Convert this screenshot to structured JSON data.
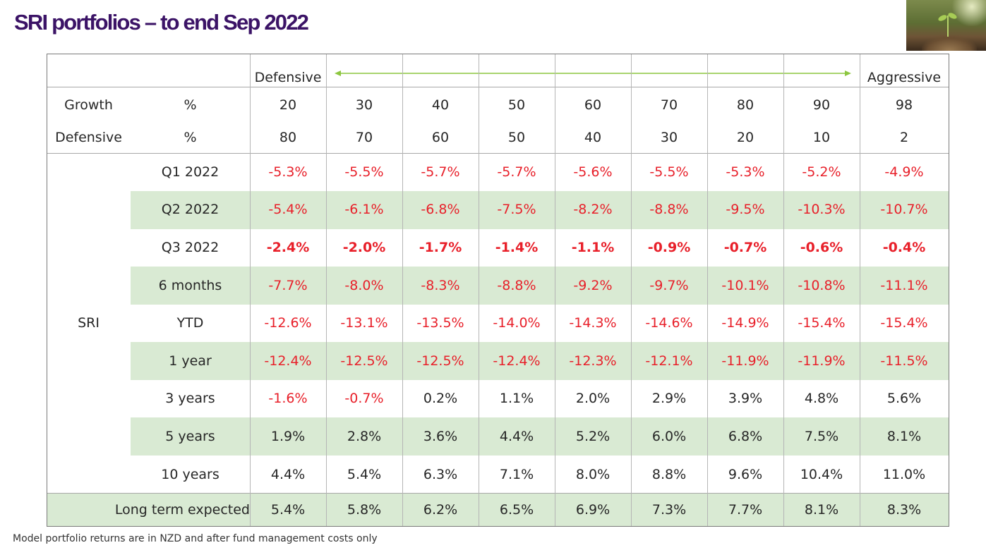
{
  "title": "SRI portfolios – to end Sep 2022",
  "footnote": "Model portfolio returns are in NZD and after fund management costs only",
  "colors": {
    "title": "#3b1366",
    "negative": "#e8202a",
    "band": "#d9ead3",
    "arrow": "#8cc63f"
  },
  "header": {
    "left_label": "Defensive",
    "right_label": "Aggressive",
    "arrow_icon": "double-headed-arrow-icon",
    "growth_label": "Growth",
    "defensive_label": "Defensive",
    "unit": "%",
    "growth": [
      "20",
      "30",
      "40",
      "50",
      "60",
      "70",
      "80",
      "90",
      "98"
    ],
    "defensive": [
      "80",
      "70",
      "60",
      "50",
      "40",
      "30",
      "20",
      "10",
      "2"
    ]
  },
  "group_label": "SRI",
  "rows": [
    {
      "label": "Q1 2022",
      "values": [
        "-5.3%",
        "-5.5%",
        "-5.7%",
        "-5.7%",
        "-5.6%",
        "-5.5%",
        "-5.3%",
        "-5.2%",
        "-4.9%"
      ]
    },
    {
      "label": "Q2 2022",
      "values": [
        "-5.4%",
        "-6.1%",
        "-6.8%",
        "-7.5%",
        "-8.2%",
        "-8.8%",
        "-9.5%",
        "-10.3%",
        "-10.7%"
      ]
    },
    {
      "label": "Q3 2022",
      "values": [
        "-2.4%",
        "-2.0%",
        "-1.7%",
        "-1.4%",
        "-1.1%",
        "-0.9%",
        "-0.7%",
        "-0.6%",
        "-0.4%"
      ]
    },
    {
      "label": "6 months",
      "values": [
        "-7.7%",
        "-8.0%",
        "-8.3%",
        "-8.8%",
        "-9.2%",
        "-9.7%",
        "-10.1%",
        "-10.8%",
        "-11.1%"
      ]
    },
    {
      "label": "YTD",
      "values": [
        "-12.6%",
        "-13.1%",
        "-13.5%",
        "-14.0%",
        "-14.3%",
        "-14.6%",
        "-14.9%",
        "-15.4%",
        "-15.4%"
      ]
    },
    {
      "label": "1 year",
      "values": [
        "-12.4%",
        "-12.5%",
        "-12.5%",
        "-12.4%",
        "-12.3%",
        "-12.1%",
        "-11.9%",
        "-11.9%",
        "-11.5%"
      ]
    },
    {
      "label": "3 years",
      "values": [
        "-1.6%",
        "-0.7%",
        "0.2%",
        "1.1%",
        "2.0%",
        "2.9%",
        "3.9%",
        "4.8%",
        "5.6%"
      ]
    },
    {
      "label": "5 years",
      "values": [
        "1.9%",
        "2.8%",
        "3.6%",
        "4.4%",
        "5.2%",
        "6.0%",
        "6.8%",
        "7.5%",
        "8.1%"
      ]
    },
    {
      "label": "10 years",
      "values": [
        "4.4%",
        "5.4%",
        "6.3%",
        "7.1%",
        "8.0%",
        "8.8%",
        "9.6%",
        "10.4%",
        "11.0%"
      ]
    }
  ],
  "long_term": {
    "label": "Long term expected",
    "values": [
      "5.4%",
      "5.8%",
      "6.2%",
      "6.5%",
      "6.9%",
      "7.3%",
      "7.7%",
      "8.1%",
      "8.3%"
    ]
  },
  "bold_rows": [
    "Q3 2022"
  ],
  "shaded_rows": [
    "Q2 2022",
    "6 months",
    "1 year",
    "5 years"
  ]
}
